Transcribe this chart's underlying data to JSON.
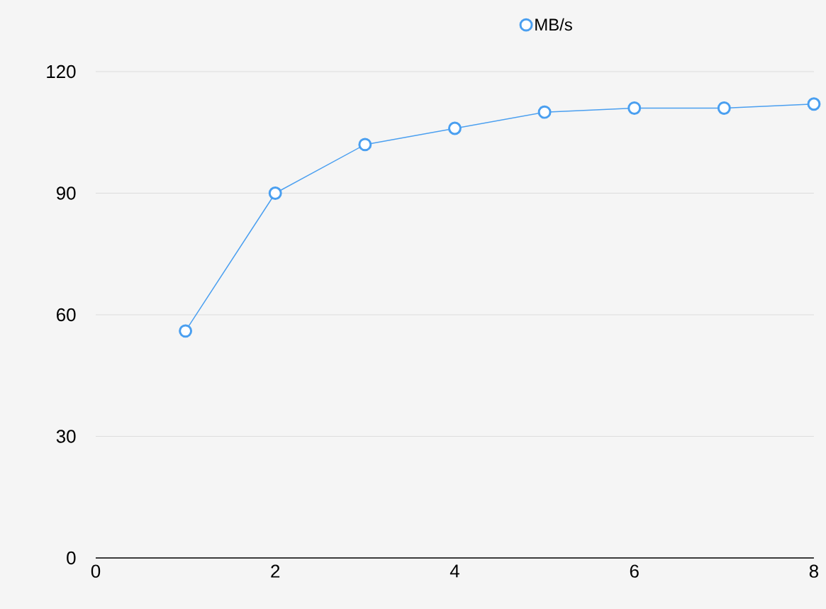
{
  "chart_data": {
    "type": "line",
    "x": [
      1,
      2,
      3,
      4,
      5,
      6,
      7,
      8
    ],
    "series": [
      {
        "name": "MB/s",
        "color": "#4a9ff0",
        "values": [
          56,
          90,
          102,
          106,
          110,
          111,
          111,
          112
        ]
      }
    ],
    "xlim": [
      0,
      8
    ],
    "xticks": [
      0,
      2,
      4,
      6,
      8
    ],
    "ylim": [
      0,
      120
    ],
    "yticks": [
      0,
      30,
      60,
      90,
      120
    ],
    "grid": "y",
    "legend": "top",
    "marker": "circle",
    "line_style": "solid"
  }
}
